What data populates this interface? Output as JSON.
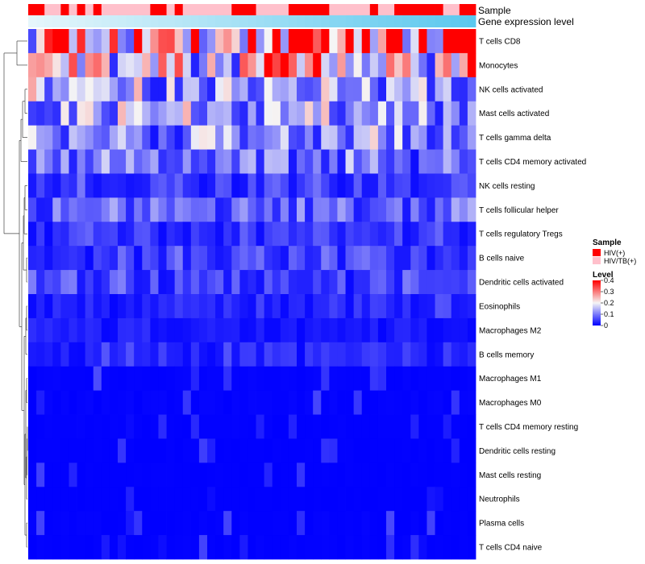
{
  "chart_data": {
    "type": "heatmap",
    "annotation_rows": [
      {
        "label": "Sample",
        "categories": [
          "HIV(+)",
          "HIV/TB(+)"
        ],
        "values": [
          "HIV(+)",
          "HIV(+)",
          "HIV/TB(+)",
          "HIV/TB(+)",
          "HIV(+)",
          "HIV/TB(+)",
          "HIV(+)",
          "HIV/TB(+)",
          "HIV(+)",
          "HIV/TB(+)",
          "HIV/TB(+)",
          "HIV/TB(+)",
          "HIV/TB(+)",
          "HIV/TB(+)",
          "HIV/TB(+)",
          "HIV(+)",
          "HIV(+)",
          "HIV/TB(+)",
          "HIV(+)",
          "HIV/TB(+)",
          "HIV/TB(+)",
          "HIV/TB(+)",
          "HIV/TB(+)",
          "HIV/TB(+)",
          "HIV/TB(+)",
          "HIV(+)",
          "HIV(+)",
          "HIV(+)",
          "HIV/TB(+)",
          "HIV/TB(+)",
          "HIV/TB(+)",
          "HIV/TB(+)",
          "HIV(+)",
          "HIV(+)",
          "HIV(+)",
          "HIV(+)",
          "HIV(+)",
          "HIV/TB(+)",
          "HIV/TB(+)",
          "HIV/TB(+)",
          "HIV/TB(+)",
          "HIV/TB(+)",
          "HIV(+)",
          "HIV/TB(+)",
          "HIV/TB(+)",
          "HIV(+)",
          "HIV(+)",
          "HIV(+)",
          "HIV(+)",
          "HIV(+)",
          "HIV(+)",
          "HIV/TB(+)",
          "HIV/TB(+)",
          "HIV(+)",
          "HIV(+)"
        ]
      },
      {
        "label": "Gene expression level",
        "values": [
          0.0,
          0.02,
          0.04,
          0.06,
          0.07,
          0.09,
          0.11,
          0.13,
          0.15,
          0.17,
          0.19,
          0.2,
          0.22,
          0.24,
          0.26,
          0.28,
          0.3,
          0.31,
          0.33,
          0.35,
          0.37,
          0.39,
          0.41,
          0.43,
          0.44,
          0.46,
          0.48,
          0.5,
          0.52,
          0.54,
          0.56,
          0.57,
          0.59,
          0.61,
          0.63,
          0.65,
          0.67,
          0.69,
          0.7,
          0.72,
          0.74,
          0.76,
          0.78,
          0.8,
          0.81,
          0.83,
          0.85,
          0.87,
          0.89,
          0.91,
          0.93,
          0.94,
          0.96,
          0.98,
          1.0
        ]
      }
    ],
    "rows": [
      "T cells CD8",
      "Monocytes",
      "NK cells activated",
      "Mast cells activated",
      "T cells gamma delta",
      "T cells CD4 memory activated",
      "NK cells resting",
      "T cells follicular helper",
      "T cells regulatory  Tregs",
      "B cells naive",
      "Dendritic cells activated",
      "Eosinophils",
      "Macrophages M2",
      "B cells memory",
      "Macrophages M1",
      "Macrophages M0",
      "T cells CD4 memory resting",
      "Dendritic cells resting",
      "Mast cells resting",
      "Neutrophils",
      "Plasma cells",
      "T cells CD4 naive"
    ],
    "row_mean_levels": [
      0.34,
      0.2,
      0.12,
      0.12,
      0.11,
      0.09,
      0.05,
      0.07,
      0.04,
      0.05,
      0.05,
      0.03,
      0.02,
      0.03,
      0.015,
      0.015,
      0.008,
      0.006,
      0.005,
      0.004,
      0.01,
      0.008
    ],
    "n_columns": 55,
    "color_scale": {
      "label": "Level",
      "min": 0,
      "max": 0.4,
      "ticks": [
        0.4,
        0.3,
        0.2,
        0.1,
        0
      ],
      "low_color": "#0000ff",
      "mid_color": "#f5f5f5",
      "high_color": "#ff0000",
      "mid_value": 0.2
    },
    "legend": {
      "title": "Sample",
      "entries": [
        {
          "label": "HIV(+)",
          "color": "#ff0000"
        },
        {
          "label": "HIV/TB(+)",
          "color": "#ffc0cb"
        }
      ]
    },
    "gene_bar_colors": {
      "low": "#e6f6fb",
      "high": "#5bc8ee"
    },
    "dendrogram": "left",
    "legend_position": "right"
  }
}
